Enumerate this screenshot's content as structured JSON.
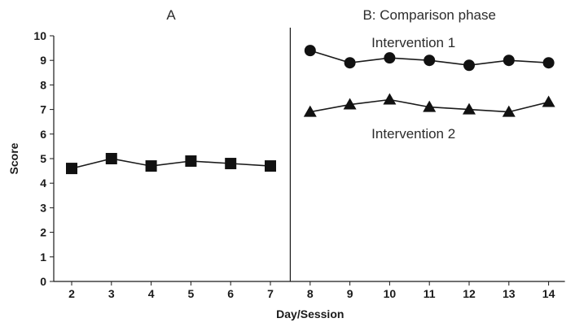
{
  "chart_data": {
    "type": "line",
    "xlabel": "Day/Session",
    "ylabel": "Score",
    "ylim": [
      0,
      10
    ],
    "yticks": [
      0,
      1,
      2,
      3,
      4,
      5,
      6,
      7,
      8,
      9,
      10
    ],
    "xticks": [
      2,
      3,
      4,
      5,
      6,
      7,
      8,
      9,
      10,
      11,
      12,
      13,
      14
    ],
    "grid": false,
    "phases": [
      {
        "label": "A",
        "x_start": 2,
        "x_end": 7
      },
      {
        "label": "B: Comparison phase",
        "x_start": 8,
        "x_end": 14
      }
    ],
    "phase_change_after_x": 7.5,
    "series": [
      {
        "marker": "square",
        "x": [
          2,
          3,
          4,
          5,
          6,
          7
        ],
        "y": [
          4.6,
          5.0,
          4.7,
          4.9,
          4.8,
          4.7
        ]
      },
      {
        "name": "Intervention 1",
        "marker": "circle",
        "x": [
          8,
          9,
          10,
          11,
          12,
          13,
          14
        ],
        "y": [
          9.4,
          8.9,
          9.1,
          9.0,
          8.8,
          9.0,
          8.9
        ]
      },
      {
        "name": "Intervention 2",
        "marker": "triangle",
        "x": [
          8,
          9,
          10,
          11,
          12,
          13,
          14
        ],
        "y": [
          6.9,
          7.2,
          7.4,
          7.1,
          7.0,
          6.9,
          7.3
        ]
      }
    ],
    "colors": {
      "line": "#1a1a1a",
      "marker": "#111111"
    }
  }
}
